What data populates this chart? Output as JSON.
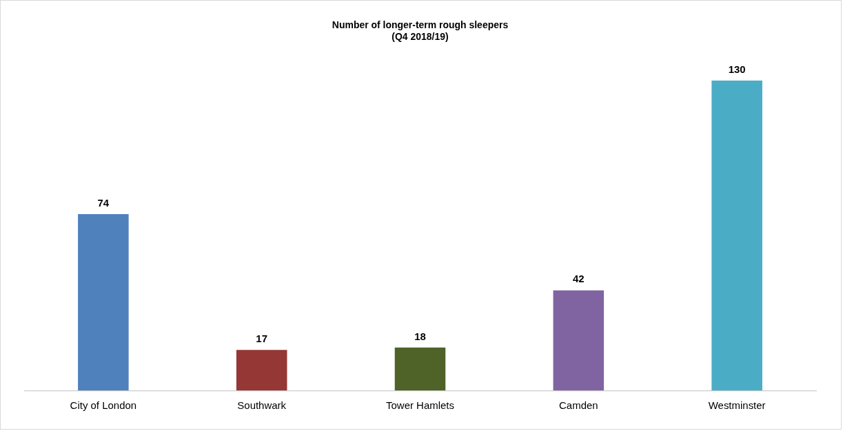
{
  "chart_data": {
    "type": "bar",
    "title": "Number of longer-term rough sleepers\n(Q4 2018/19)",
    "categories": [
      "City of London",
      "Southwark",
      "Tower Hamlets",
      "Camden",
      "Westminster"
    ],
    "values": [
      74,
      17,
      18,
      42,
      130
    ],
    "colors": [
      "#4f81bd",
      "#953735",
      "#4f6228",
      "#8064a2",
      "#4bacc6"
    ],
    "data_labels": true,
    "grid": false,
    "legend": false
  }
}
